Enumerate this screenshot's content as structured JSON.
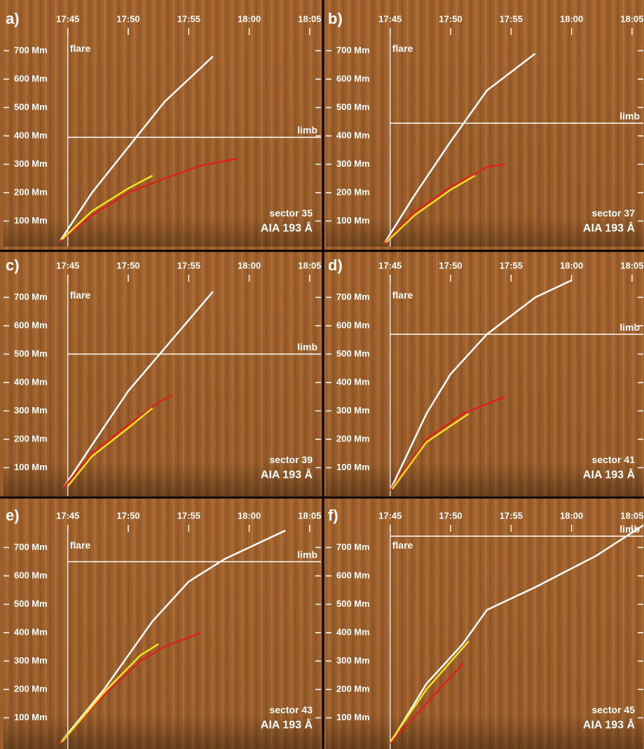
{
  "chart_data": [
    {
      "type": "line",
      "panel_label": "a)",
      "sector": "sector 35",
      "instrument": "AIA 193 Å",
      "xlim": [
        "17:39:41",
        "18:05:56"
      ],
      "xticks": [
        "17:45",
        "17:50",
        "17:55",
        "18:00",
        "18:05"
      ],
      "ylim": [
        0,
        780
      ],
      "yticks": [
        {
          "value": 100,
          "label": "100 Mm"
        },
        {
          "value": 200,
          "label": "200 Mm"
        },
        {
          "value": 300,
          "label": "300 Mm"
        },
        {
          "value": 400,
          "label": "400 Mm"
        },
        {
          "value": 500,
          "label": "500 Mm"
        },
        {
          "value": 600,
          "label": "600 Mm"
        },
        {
          "value": 700,
          "label": "700 Mm"
        }
      ],
      "flare": {
        "label": "flare",
        "x": "17:45"
      },
      "limb": {
        "label": "limb",
        "y": 395
      },
      "series": [
        {
          "color": "#ffffff",
          "x": [
            "17:44:20",
            "17:47:00",
            "17:50:00",
            "17:53:00",
            "17:57:00"
          ],
          "values": [
            28,
            200,
            360,
            520,
            680
          ]
        },
        {
          "color": "#e0201c",
          "x": [
            "17:44:20",
            "17:47:00",
            "17:50:00",
            "17:53:00",
            "17:56:00",
            "17:59:00"
          ],
          "values": [
            28,
            120,
            200,
            250,
            295,
            320
          ]
        },
        {
          "color": "#f2e21a",
          "x": [
            "17:44:30",
            "17:47:00",
            "17:50:00",
            "17:52:00"
          ],
          "values": [
            35,
            135,
            215,
            260
          ]
        }
      ]
    },
    {
      "type": "line",
      "panel_label": "b)",
      "sector": "sector 37",
      "instrument": "AIA 193 Å",
      "xlim": [
        "17:39:41",
        "18:05:56"
      ],
      "xticks": [
        "17:45",
        "17:50",
        "17:55",
        "18:00",
        "18:05"
      ],
      "ylim": [
        0,
        780
      ],
      "yticks": [
        {
          "value": 100,
          "label": "100 Mm"
        },
        {
          "value": 200,
          "label": "200 Mm"
        },
        {
          "value": 300,
          "label": "300 Mm"
        },
        {
          "value": 400,
          "label": "400 Mm"
        },
        {
          "value": 500,
          "label": "500 Mm"
        },
        {
          "value": 600,
          "label": "600 Mm"
        },
        {
          "value": 700,
          "label": "700 Mm"
        }
      ],
      "flare": {
        "label": "flare",
        "x": "17:45"
      },
      "limb": {
        "label": "limb",
        "y": 445
      },
      "series": [
        {
          "color": "#ffffff",
          "x": [
            "17:44:30",
            "17:47:00",
            "17:50:00",
            "17:53:00",
            "17:57:00"
          ],
          "values": [
            20,
            190,
            380,
            560,
            690
          ]
        },
        {
          "color": "#e0201c",
          "x": [
            "17:44:30",
            "17:47:00",
            "17:50:00",
            "17:53:00",
            "17:54:30"
          ],
          "values": [
            20,
            130,
            220,
            290,
            300
          ]
        },
        {
          "color": "#f2e21a",
          "x": [
            "17:44:40",
            "17:47:00",
            "17:50:00",
            "17:52:00"
          ],
          "values": [
            25,
            120,
            210,
            260
          ]
        }
      ]
    },
    {
      "type": "line",
      "panel_label": "c)",
      "sector": "sector 39",
      "instrument": "AIA 193 Å",
      "xlim": [
        "17:39:41",
        "18:05:56"
      ],
      "xticks": [
        "17:45",
        "17:50",
        "17:55",
        "18:00",
        "18:05"
      ],
      "ylim": [
        0,
        780
      ],
      "yticks": [
        {
          "value": 100,
          "label": "100 Mm"
        },
        {
          "value": 200,
          "label": "200 Mm"
        },
        {
          "value": 300,
          "label": "300 Mm"
        },
        {
          "value": 400,
          "label": "400 Mm"
        },
        {
          "value": 500,
          "label": "500 Mm"
        },
        {
          "value": 600,
          "label": "600 Mm"
        },
        {
          "value": 700,
          "label": "700 Mm"
        }
      ],
      "flare": {
        "label": "flare",
        "x": "17:45"
      },
      "limb": {
        "label": "limb",
        "y": 500
      },
      "series": [
        {
          "color": "#ffffff",
          "x": [
            "17:44:40",
            "17:47:00",
            "17:50:00",
            "17:53:00",
            "17:57:00"
          ],
          "values": [
            30,
            180,
            370,
            520,
            720
          ]
        },
        {
          "color": "#e0201c",
          "x": [
            "17:44:40",
            "17:47:00",
            "17:50:00",
            "17:52:30",
            "17:53:40"
          ],
          "values": [
            30,
            150,
            250,
            330,
            355
          ]
        },
        {
          "color": "#f2e21a",
          "x": [
            "17:45:00",
            "17:47:00",
            "17:50:00",
            "17:52:00"
          ],
          "values": [
            35,
            140,
            240,
            310
          ]
        }
      ]
    },
    {
      "type": "line",
      "panel_label": "d)",
      "sector": "sector 41",
      "instrument": "AIA 193 Å",
      "xlim": [
        "17:39:41",
        "18:05:56"
      ],
      "xticks": [
        "17:45",
        "17:50",
        "17:55",
        "18:00",
        "18:05"
      ],
      "ylim": [
        0,
        780
      ],
      "yticks": [
        {
          "value": 100,
          "label": "100 Mm"
        },
        {
          "value": 200,
          "label": "200 Mm"
        },
        {
          "value": 300,
          "label": "300 Mm"
        },
        {
          "value": 400,
          "label": "400 Mm"
        },
        {
          "value": 500,
          "label": "500 Mm"
        },
        {
          "value": 600,
          "label": "600 Mm"
        },
        {
          "value": 700,
          "label": "700 Mm"
        }
      ],
      "flare": {
        "label": "flare",
        "x": "17:45"
      },
      "limb": {
        "label": "limb",
        "y": 570
      },
      "series": [
        {
          "color": "#ffffff",
          "x": [
            "17:45:00",
            "17:48:00",
            "17:50:00",
            "17:53:00",
            "17:57:00",
            "18:00:00"
          ],
          "values": [
            20,
            290,
            430,
            570,
            700,
            760
          ]
        },
        {
          "color": "#e0201c",
          "x": [
            "17:45:00",
            "17:48:00",
            "17:51:00",
            "17:54:30"
          ],
          "values": [
            20,
            200,
            290,
            350
          ]
        },
        {
          "color": "#f2e21a",
          "x": [
            "17:45:10",
            "17:48:00",
            "17:51:30"
          ],
          "values": [
            25,
            190,
            290
          ]
        }
      ]
    },
    {
      "type": "line",
      "panel_label": "e)",
      "sector": "sector 43",
      "instrument": "AIA 193 Å",
      "xlim": [
        "17:39:41",
        "18:05:56"
      ],
      "xticks": [
        "17:45",
        "17:50",
        "17:55",
        "18:00",
        "18:05"
      ],
      "ylim": [
        0,
        780
      ],
      "yticks": [
        {
          "value": 100,
          "label": "100 Mm"
        },
        {
          "value": 200,
          "label": "200 Mm"
        },
        {
          "value": 300,
          "label": "300 Mm"
        },
        {
          "value": 400,
          "label": "400 Mm"
        },
        {
          "value": 500,
          "label": "500 Mm"
        },
        {
          "value": 600,
          "label": "600 Mm"
        },
        {
          "value": 700,
          "label": "700 Mm"
        }
      ],
      "flare": {
        "label": "flare",
        "x": "17:45"
      },
      "limb": {
        "label": "limb",
        "y": 650
      },
      "series": [
        {
          "color": "#ffffff",
          "x": [
            "17:44:20",
            "17:48:00",
            "17:52:00",
            "17:55:00",
            "17:58:00",
            "18:03:00"
          ],
          "values": [
            10,
            200,
            440,
            580,
            660,
            760
          ]
        },
        {
          "color": "#e0201c",
          "x": [
            "17:44:20",
            "17:48:00",
            "17:51:00",
            "17:53:00",
            "17:56:00"
          ],
          "values": [
            10,
            180,
            300,
            350,
            400
          ]
        },
        {
          "color": "#f2e21a",
          "x": [
            "17:44:30",
            "17:48:00",
            "17:51:00",
            "17:52:30"
          ],
          "values": [
            15,
            190,
            320,
            360
          ]
        }
      ]
    },
    {
      "type": "line",
      "panel_label": "f)",
      "sector": "sector 45",
      "instrument": "AIA 193 Å",
      "xlim": [
        "17:39:41",
        "18:05:56"
      ],
      "xticks": [
        "17:45",
        "17:50",
        "17:55",
        "18:00",
        "18:05"
      ],
      "ylim": [
        0,
        780
      ],
      "yticks": [
        {
          "value": 100,
          "label": "100 Mm"
        },
        {
          "value": 200,
          "label": "200 Mm"
        },
        {
          "value": 300,
          "label": "300 Mm"
        },
        {
          "value": 400,
          "label": "400 Mm"
        },
        {
          "value": 500,
          "label": "500 Mm"
        },
        {
          "value": 600,
          "label": "600 Mm"
        },
        {
          "value": 700,
          "label": "700 Mm"
        }
      ],
      "flare": {
        "label": "flare",
        "x": "17:45"
      },
      "limb": {
        "label": "limb",
        "y": 740
      },
      "series": [
        {
          "color": "#ffffff",
          "x": [
            "17:45:00",
            "17:48:00",
            "17:51:00",
            "17:53:00",
            "17:57:00",
            "18:02:00",
            "18:06:00"
          ],
          "values": [
            10,
            220,
            360,
            480,
            560,
            670,
            780
          ]
        },
        {
          "color": "#e0201c",
          "x": [
            "17:45:00",
            "17:48:00",
            "17:51:00"
          ],
          "values": [
            10,
            150,
            290
          ]
        },
        {
          "color": "#f2e21a",
          "x": [
            "17:45:00",
            "17:48:00",
            "17:51:30"
          ],
          "values": [
            15,
            200,
            370
          ]
        }
      ]
    }
  ]
}
